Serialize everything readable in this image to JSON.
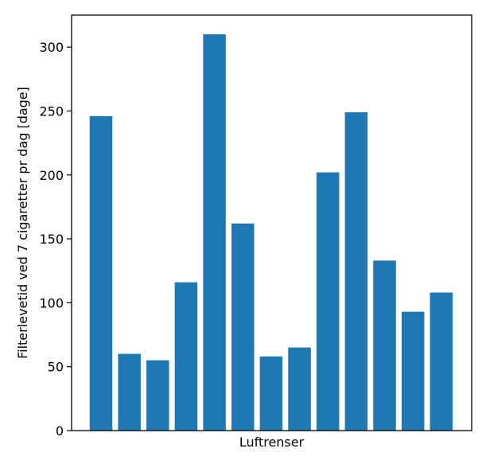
{
  "chart_data": {
    "type": "bar",
    "xlabel": "Luftrenser",
    "ylabel": "Filterlevetid ved 7 cigaretter pr dag [dage]",
    "ylim": [
      0,
      325
    ],
    "yticks": [
      0,
      50,
      100,
      150,
      200,
      250,
      300
    ],
    "ytick_labels": [
      "0",
      "50",
      "100",
      "150",
      "200",
      "250",
      "300"
    ],
    "values": [
      246,
      60,
      55,
      116,
      310,
      162,
      58,
      65,
      202,
      249,
      133,
      93,
      108
    ],
    "bar_color": "#1f77b4",
    "grid": false,
    "legend": "none"
  }
}
